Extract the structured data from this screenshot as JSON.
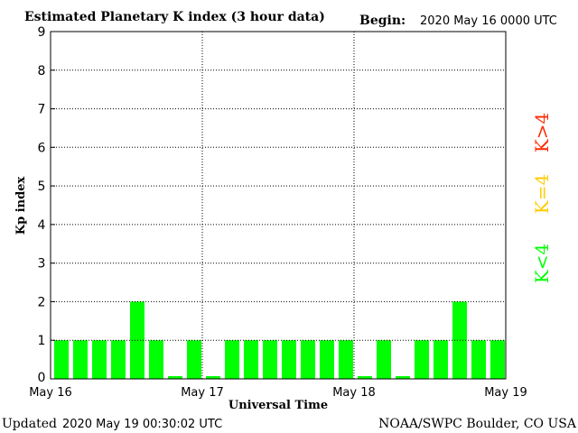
{
  "header": {
    "title": "Estimated Planetary K index (3 hour data)",
    "begin_label": "Begin:",
    "begin_value": "2020 May 16 0000 UTC"
  },
  "footer": {
    "updated_label": "Updated",
    "updated_value": "2020 May 19 00:30:02 UTC",
    "credit": "NOAA/SWPC Boulder, CO USA"
  },
  "legend": {
    "high": {
      "label": "K>4",
      "color": "#ff2a00"
    },
    "equal": {
      "label": "K=4",
      "color": "#ffcc00"
    },
    "low": {
      "label": "K<4",
      "color": "#00ff00"
    }
  },
  "chart_data": {
    "type": "bar",
    "xlabel": "Universal Time",
    "ylabel": "Kp index",
    "ylim": [
      0,
      9
    ],
    "yticks": [
      "0",
      "1",
      "2",
      "3",
      "4",
      "5",
      "6",
      "7",
      "8",
      "9"
    ],
    "xticks": [
      "May 16",
      "May 17",
      "May 18",
      "May 19"
    ],
    "grid": true,
    "bar_color": "#00ff00",
    "values": [
      1,
      1,
      1,
      1,
      2,
      1,
      0.07,
      1,
      0.07,
      1,
      1,
      1,
      1,
      1,
      1,
      1,
      0.07,
      1,
      0.07,
      1,
      1,
      2,
      1,
      1
    ]
  }
}
